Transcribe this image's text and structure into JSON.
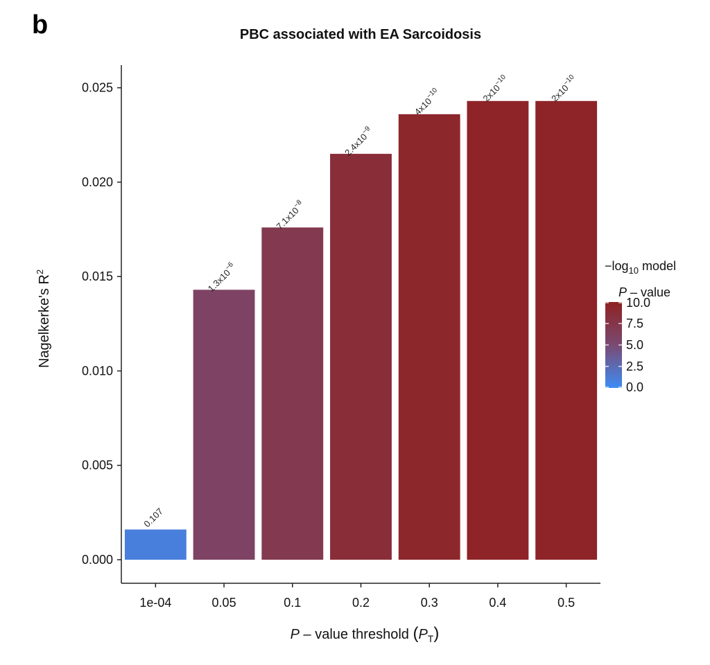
{
  "panel_letter": "b",
  "chart_data": {
    "type": "bar",
    "title": "PBC associated with EA Sarcoidosis",
    "xlabel": {
      "prefix": "P",
      "middle": " – value threshold ",
      "sym": "P",
      "sub": "T"
    },
    "ylabel": {
      "base": "Nagelkerke's R",
      "sup": "2"
    },
    "categories": [
      "1e-04",
      "0.05",
      "0.1",
      "0.2",
      "0.3",
      "0.4",
      "0.5"
    ],
    "values": [
      0.0016,
      0.0143,
      0.0176,
      0.0215,
      0.0236,
      0.0243,
      0.0243
    ],
    "neg_log10_p": [
      0.97,
      5.89,
      7.15,
      8.62,
      9.4,
      9.7,
      9.7
    ],
    "bar_labels": [
      {
        "mantissa": "0.107",
        "exp": ""
      },
      {
        "mantissa": "1.3x10",
        "exp": "−6"
      },
      {
        "mantissa": "7.1x10",
        "exp": "−8"
      },
      {
        "mantissa": "2.4x10",
        "exp": "−9"
      },
      {
        "mantissa": "4x10",
        "exp": "−10"
      },
      {
        "mantissa": "2x10",
        "exp": "−10"
      },
      {
        "mantissa": "2x10",
        "exp": "−10"
      }
    ],
    "ylim": [
      0,
      0.0262
    ],
    "yticks": [
      "0.000",
      "0.005",
      "0.010",
      "0.015",
      "0.020",
      "0.025"
    ],
    "ytick_values": [
      0,
      0.005,
      0.01,
      0.015,
      0.02,
      0.025
    ],
    "grid": false,
    "legend": {
      "title_line1": {
        "prefix": "−log",
        "sub": "10",
        "suffix": " model"
      },
      "title_line2": {
        "sym": "P",
        "suffix": " – value"
      },
      "range": [
        0,
        10
      ],
      "ticks": [
        "0.0",
        "2.5",
        "5.0",
        "7.5",
        "10.0"
      ],
      "tick_values": [
        0,
        2.5,
        5,
        7.5,
        10
      ],
      "low_color": "#3d8cf5",
      "mid_color": "#7a4a72",
      "high_color": "#8f2222",
      "placement": "right"
    }
  }
}
